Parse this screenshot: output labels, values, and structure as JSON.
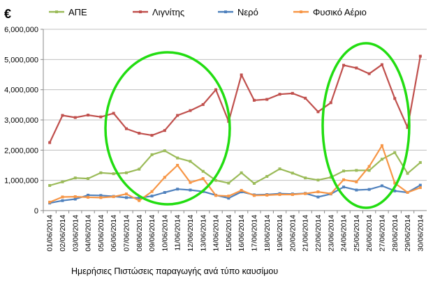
{
  "chart_data": {
    "type": "line",
    "unit_label": "€",
    "caption": "Ημερήσιες Πιστώσεις παραγωγής ανά τύπο καυσίμου",
    "ylim": [
      0,
      6000000
    ],
    "yticks": [
      "0",
      "1,000,000",
      "2,000,000",
      "3,000,000",
      "4,000,000",
      "5,000,000",
      "6,000,000"
    ],
    "ytick_values": [
      0,
      1000000,
      2000000,
      3000000,
      4000000,
      5000000,
      6000000
    ],
    "grid": true,
    "legend_position": "top",
    "x": [
      "01/06/2014",
      "02/06/2014",
      "03/06/2014",
      "04/06/2014",
      "05/06/2014",
      "06/06/2014",
      "07/06/2014",
      "08/06/2014",
      "09/06/2014",
      "10/06/2014",
      "11/06/2014",
      "12/06/2014",
      "13/06/2014",
      "14/06/2014",
      "15/06/2014",
      "16/06/2014",
      "17/06/2014",
      "18/06/2014",
      "19/06/2014",
      "20/06/2014",
      "21/06/2014",
      "22/06/2014",
      "23/06/2014",
      "24/06/2014",
      "25/06/2014",
      "26/06/2014",
      "27/06/2014",
      "28/06/2014",
      "29/06/2014",
      "30/06/2014"
    ],
    "series": [
      {
        "name": "ΑΠΕ",
        "color": "#9BBB59",
        "values": [
          830000,
          950000,
          1080000,
          1060000,
          1250000,
          1220000,
          1250000,
          1370000,
          1850000,
          1980000,
          1740000,
          1630000,
          1300000,
          1000000,
          910000,
          1250000,
          900000,
          1130000,
          1380000,
          1240000,
          1080000,
          1010000,
          1100000,
          1310000,
          1330000,
          1330000,
          1700000,
          1920000,
          1230000,
          1590000
        ]
      },
      {
        "name": "Λιγνίτης",
        "color": "#C0504D",
        "values": [
          2250000,
          3150000,
          3080000,
          3160000,
          3100000,
          3220000,
          2710000,
          2560000,
          2490000,
          2650000,
          3150000,
          3310000,
          3510000,
          4000000,
          2950000,
          4490000,
          3650000,
          3680000,
          3850000,
          3880000,
          3720000,
          3270000,
          3570000,
          4810000,
          4720000,
          4530000,
          4830000,
          3710000,
          2750000,
          5110000
        ]
      },
      {
        "name": "Νερό",
        "color": "#4F81BD",
        "values": [
          250000,
          330000,
          380000,
          510000,
          500000,
          470000,
          430000,
          420000,
          480000,
          600000,
          710000,
          680000,
          630000,
          510000,
          410000,
          620000,
          520000,
          530000,
          560000,
          550000,
          570000,
          450000,
          550000,
          780000,
          680000,
          700000,
          820000,
          650000,
          600000,
          840000
        ]
      },
      {
        "name": "Φυσικό Αέριο",
        "color": "#F79646",
        "values": [
          280000,
          450000,
          460000,
          440000,
          430000,
          460000,
          550000,
          330000,
          630000,
          1100000,
          1500000,
          930000,
          1060000,
          500000,
          480000,
          670000,
          500000,
          510000,
          530000,
          530000,
          560000,
          620000,
          560000,
          1020000,
          950000,
          1460000,
          2150000,
          910000,
          600000,
          760000
        ]
      }
    ]
  }
}
